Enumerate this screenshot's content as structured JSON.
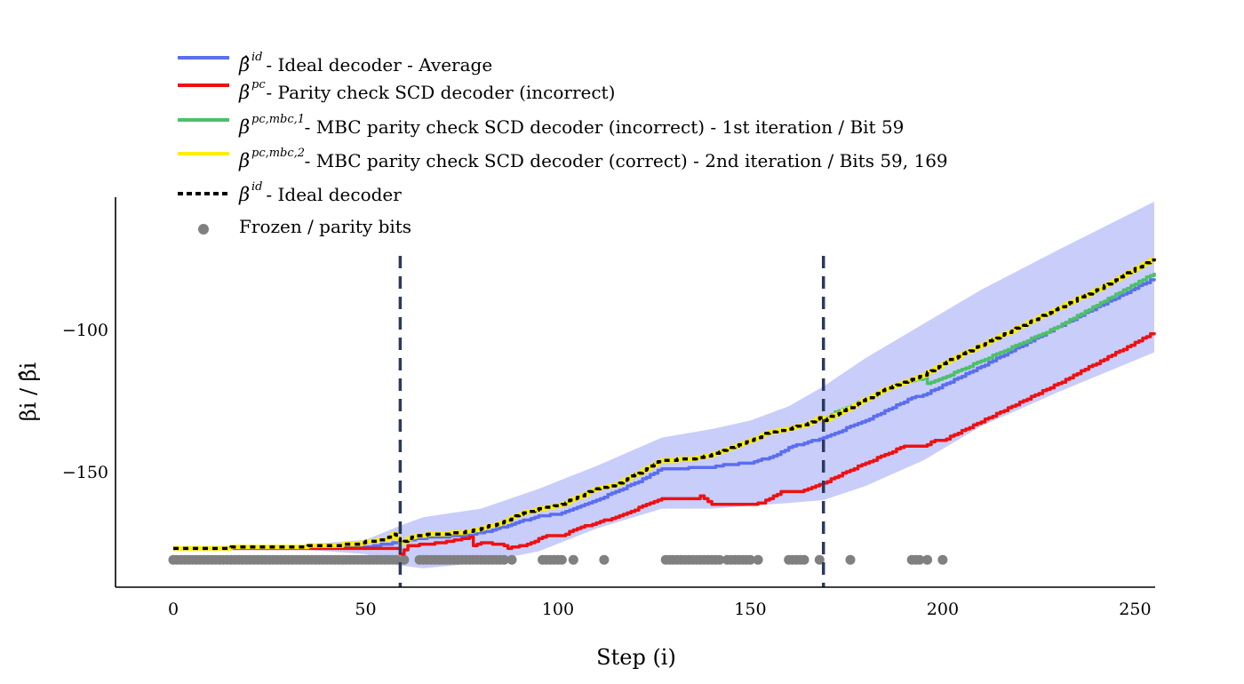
{
  "chart_data": {
    "type": "line",
    "xlabel": "Step (i)",
    "ylabel": "βi / β̂i",
    "xlim": [
      -15,
      255
    ],
    "ylim": [
      -190,
      -55
    ],
    "x_ticks": [
      0,
      50,
      100,
      150,
      200,
      250
    ],
    "y_ticks": [
      -100,
      -150
    ],
    "grid": false,
    "legend_position": "top-left",
    "legend": [
      {
        "symbol": "β̂",
        "sup": "id",
        "text": " - Ideal decoder - Average",
        "color": "#5b6ef0",
        "style": "solid"
      },
      {
        "symbol": "β",
        "sup": "pc",
        "text": " - Parity check SCD decoder (incorrect)",
        "color": "#ee1111",
        "style": "solid"
      },
      {
        "symbol": "β",
        "sup": "pc,mbc,1",
        "text": " - MBC parity check SCD decoder (incorrect) - 1st iteration / Bit 59",
        "color": "#4cc06a",
        "style": "solid"
      },
      {
        "symbol": "β",
        "sup": "pc,mbc,2",
        "text": " - MBC parity check SCD decoder (correct) - 2nd iteration / Bits 59, 169",
        "color": "#ffee00",
        "style": "solid"
      },
      {
        "symbol": "β",
        "sup": "id",
        "text": " - Ideal decoder",
        "color": "#000000",
        "style": "dotted"
      },
      {
        "symbol": "",
        "sup": "",
        "text": "Frozen / parity bits",
        "color": "#808080",
        "style": "marker"
      }
    ],
    "vlines": [
      59,
      169
    ],
    "band": {
      "name": "Ideal decoder spread",
      "x": [
        0,
        30,
        50,
        59,
        65,
        80,
        95,
        110,
        127,
        140,
        150,
        160,
        169,
        180,
        195,
        210,
        230,
        255
      ],
      "upper": [
        -177,
        -176,
        -174,
        -169,
        -166,
        -163,
        -156,
        -148,
        -138,
        -135,
        -132,
        -127,
        -120,
        -110,
        -98,
        -86,
        -72,
        -55
      ],
      "lower": [
        -177,
        -177,
        -179,
        -183,
        -184,
        -182,
        -178,
        -170,
        -163,
        -163,
        -162,
        -161,
        -160,
        -155,
        -146,
        -134,
        -122,
        -108
      ]
    },
    "series": [
      {
        "name": "ideal-average",
        "color": "#5b6ef0",
        "x": [
          0,
          30,
          50,
          55,
          59,
          63,
          75,
          82,
          95,
          100,
          110,
          120,
          127,
          140,
          143,
          150,
          157,
          160,
          169,
          180,
          192,
          195,
          210,
          230,
          255
        ],
        "y": [
          -177,
          -177,
          -176.5,
          -175.5,
          -175,
          -173.5,
          -172.5,
          -171,
          -165.5,
          -165,
          -160,
          -154,
          -149,
          -148.5,
          -147.5,
          -147,
          -144,
          -141.5,
          -138,
          -132,
          -124,
          -123,
          -113,
          -99,
          -82
        ]
      },
      {
        "name": "parity-check-incorrect",
        "color": "#ee1111",
        "x": [
          0,
          58,
          59,
          61,
          66,
          70,
          77,
          78,
          80,
          85,
          87,
          92,
          97,
          101,
          105,
          115,
          127,
          136,
          137,
          140,
          150,
          153,
          158,
          163,
          169,
          175,
          190,
          195,
          198,
          200,
          230,
          255
        ],
        "y": [
          -177,
          -177,
          -179,
          -176,
          -175.5,
          -175,
          -173,
          -176,
          -175,
          -175.5,
          -177,
          -175.5,
          -172.5,
          -172.5,
          -170,
          -166,
          -159.5,
          -159.5,
          -158.5,
          -161.5,
          -161.5,
          -161,
          -157,
          -157,
          -154,
          -150,
          -141,
          -141,
          -139,
          -139,
          -119,
          -101
        ]
      },
      {
        "name": "mbc-1st-iteration",
        "color": "#4cc06a",
        "x": [
          169,
          172,
          175,
          180,
          185,
          190,
          195,
          196,
          200,
          210,
          220,
          230,
          255
        ],
        "y": [
          -132,
          -129,
          -127.5,
          -124.5,
          -121,
          -118.5,
          -117,
          -119,
          -117,
          -111,
          -105,
          -99,
          -80
        ]
      },
      {
        "name": "mbc-2nd-iteration",
        "color": "#ffee00",
        "x": [
          0,
          30,
          48,
          50,
          55,
          57,
          59,
          63,
          75,
          80,
          85,
          90,
          95,
          100,
          105,
          110,
          115,
          120,
          127,
          135,
          140,
          145,
          150,
          155,
          160,
          165,
          168,
          169,
          175,
          180,
          185,
          190,
          195,
          200,
          210,
          220,
          230,
          240,
          255
        ],
        "y": [
          -177,
          -176.5,
          -175.5,
          -174.5,
          -174,
          -172,
          -175,
          -172.5,
          -171.5,
          -170,
          -168,
          -165,
          -163,
          -162,
          -159,
          -156,
          -154.5,
          -151,
          -146,
          -145.5,
          -144,
          -141.5,
          -139,
          -136,
          -135,
          -133,
          -131,
          -132,
          -128,
          -124.5,
          -121,
          -118.5,
          -116,
          -112,
          -105.5,
          -99,
          -92.5,
          -86,
          -75
        ]
      },
      {
        "name": "ideal-decoder",
        "color": "#000000",
        "x": [
          0,
          30,
          48,
          50,
          55,
          57,
          59,
          63,
          75,
          80,
          85,
          90,
          95,
          100,
          105,
          110,
          115,
          120,
          127,
          135,
          140,
          145,
          150,
          155,
          160,
          165,
          168,
          169,
          175,
          180,
          185,
          190,
          195,
          200,
          210,
          220,
          230,
          240,
          255
        ],
        "y": [
          -177,
          -176.5,
          -175.5,
          -174.5,
          -174,
          -172,
          -175,
          -172.5,
          -171.5,
          -170,
          -168,
          -165,
          -163,
          -162,
          -159,
          -156,
          -154.5,
          -151,
          -146,
          -145.5,
          -144,
          -141.5,
          -139,
          -136,
          -135,
          -133,
          -131,
          -132,
          -128,
          -124.5,
          -121,
          -118.5,
          -116,
          -112,
          -105.5,
          -99,
          -92.5,
          -86,
          -75
        ]
      }
    ],
    "frozen_bits": {
      "y": -181,
      "x": [
        0,
        1,
        2,
        3,
        4,
        5,
        6,
        7,
        8,
        9,
        10,
        11,
        12,
        13,
        14,
        15,
        16,
        17,
        18,
        19,
        20,
        21,
        22,
        23,
        24,
        25,
        26,
        27,
        28,
        29,
        30,
        31,
        32,
        33,
        34,
        35,
        36,
        37,
        38,
        39,
        40,
        41,
        42,
        43,
        44,
        45,
        46,
        47,
        48,
        49,
        50,
        51,
        52,
        53,
        54,
        55,
        56,
        57,
        58,
        60,
        64,
        65,
        66,
        67,
        68,
        69,
        70,
        71,
        72,
        73,
        74,
        75,
        76,
        77,
        78,
        79,
        80,
        81,
        82,
        83,
        84,
        85,
        86,
        88,
        96,
        97,
        98,
        99,
        100,
        101,
        104,
        112,
        128,
        129,
        130,
        131,
        132,
        133,
        134,
        135,
        136,
        137,
        138,
        139,
        140,
        141,
        142,
        144,
        145,
        146,
        147,
        148,
        149,
        150,
        152,
        160,
        161,
        162,
        163,
        164,
        168,
        176,
        192,
        193,
        194,
        196,
        200
      ]
    }
  }
}
